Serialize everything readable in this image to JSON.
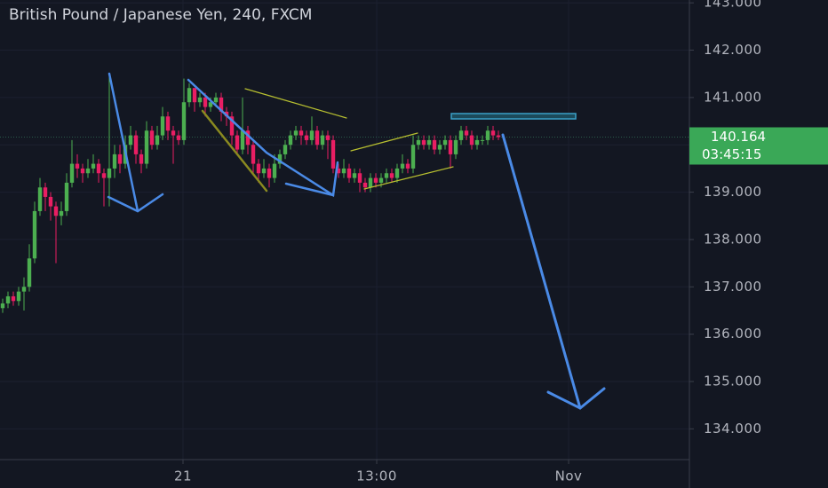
{
  "chart_data": {
    "type": "candlestick",
    "title": "British Pound / Japanese Yen, 240, FXCM",
    "up_color": "#4caf50",
    "down_color": "#e91e63",
    "open": [
      136.55,
      136.65,
      136.8,
      136.7,
      136.9,
      137.0,
      137.6,
      138.6,
      139.1,
      138.9,
      138.7,
      138.5,
      138.6,
      139.2,
      139.6,
      139.5,
      139.4,
      139.5,
      139.6,
      139.4,
      139.3,
      139.5,
      139.8,
      139.6,
      140.0,
      140.2,
      139.8,
      139.6,
      140.3,
      140.0,
      140.2,
      140.6,
      140.3,
      140.2,
      140.1,
      140.9,
      141.2,
      140.9,
      141.0,
      140.8,
      140.9,
      141.0,
      140.7,
      140.6,
      140.2,
      139.9,
      140.3,
      140.0,
      139.6,
      139.4,
      139.5,
      139.3,
      139.6,
      139.8,
      140.0,
      140.2,
      140.3,
      140.2,
      140.1,
      140.3,
      140.0,
      140.2,
      140.1,
      139.5,
      139.4,
      139.5,
      139.3,
      139.4,
      139.2,
      139.1,
      139.3,
      139.2,
      139.3,
      139.4,
      139.3,
      139.5,
      139.6,
      139.5,
      140.0,
      140.1,
      140.0,
      140.1,
      139.9,
      140.0,
      140.1,
      139.8,
      140.1,
      140.3,
      140.2,
      140.0,
      140.1,
      140.1,
      140.3,
      140.2
    ],
    "high": [
      136.75,
      136.9,
      136.9,
      137.0,
      137.2,
      137.9,
      138.8,
      139.3,
      139.2,
      139.0,
      138.8,
      138.8,
      139.4,
      140.1,
      139.8,
      139.6,
      139.7,
      139.8,
      139.7,
      139.5,
      141.5,
      140.0,
      140.0,
      140.2,
      140.4,
      140.3,
      139.9,
      140.5,
      140.4,
      140.4,
      140.8,
      140.7,
      140.4,
      140.3,
      141.4,
      141.3,
      141.2,
      141.1,
      141.1,
      141.0,
      141.1,
      141.1,
      140.8,
      140.7,
      140.3,
      141.0,
      140.4,
      140.1,
      139.7,
      139.7,
      139.6,
      139.8,
      139.9,
      140.1,
      140.3,
      140.4,
      140.4,
      140.3,
      140.6,
      140.4,
      140.3,
      140.3,
      140.2,
      139.6,
      139.7,
      139.6,
      139.5,
      139.5,
      139.3,
      139.4,
      139.4,
      139.4,
      139.5,
      139.5,
      139.6,
      139.8,
      139.7,
      140.2,
      140.2,
      140.2,
      140.2,
      140.2,
      140.1,
      140.2,
      140.2,
      140.2,
      140.4,
      140.4,
      140.3,
      140.2,
      140.2,
      140.4,
      140.4,
      140.3
    ],
    "low": [
      136.45,
      136.55,
      136.6,
      136.6,
      136.5,
      136.9,
      137.5,
      138.5,
      138.6,
      138.4,
      137.5,
      138.3,
      138.5,
      139.1,
      139.3,
      139.2,
      139.3,
      139.4,
      139.2,
      138.7,
      138.7,
      139.3,
      139.4,
      139.5,
      139.9,
      139.6,
      139.4,
      139.5,
      139.9,
      139.9,
      140.1,
      140.1,
      139.6,
      140.0,
      140.0,
      140.8,
      140.7,
      140.8,
      140.6,
      140.7,
      140.8,
      140.5,
      140.4,
      140.0,
      139.8,
      139.8,
      139.8,
      139.4,
      139.2,
      139.3,
      139.1,
      139.2,
      139.5,
      139.7,
      139.9,
      140.1,
      140.0,
      140.0,
      140.0,
      139.9,
      139.9,
      139.7,
      139.4,
      139.3,
      139.3,
      139.2,
      139.2,
      139.0,
      139.0,
      139.0,
      139.1,
      139.1,
      139.2,
      139.2,
      139.2,
      139.4,
      139.4,
      139.4,
      139.9,
      139.9,
      139.9,
      139.8,
      139.8,
      139.9,
      139.5,
      139.7,
      140.0,
      140.1,
      139.9,
      139.9,
      140.0,
      140.0,
      140.1,
      140.1
    ],
    "close": [
      136.65,
      136.8,
      136.7,
      136.9,
      137.0,
      137.6,
      138.6,
      139.1,
      138.9,
      138.7,
      138.5,
      138.6,
      139.2,
      139.6,
      139.5,
      139.4,
      139.5,
      139.6,
      139.4,
      139.3,
      139.5,
      139.8,
      139.6,
      140.0,
      140.2,
      139.8,
      139.6,
      140.3,
      140.0,
      140.2,
      140.6,
      140.3,
      140.2,
      140.1,
      140.9,
      141.2,
      140.9,
      141.0,
      140.8,
      140.9,
      141.0,
      140.7,
      140.6,
      140.2,
      139.9,
      140.3,
      140.0,
      139.6,
      139.4,
      139.5,
      139.3,
      139.6,
      139.8,
      140.0,
      140.2,
      140.3,
      140.2,
      140.1,
      140.3,
      140.0,
      140.2,
      140.1,
      139.5,
      139.4,
      139.5,
      139.3,
      139.4,
      139.2,
      139.1,
      139.3,
      139.2,
      139.3,
      139.4,
      139.3,
      139.5,
      139.6,
      139.5,
      140.0,
      140.1,
      140.0,
      140.1,
      139.9,
      140.0,
      140.1,
      139.8,
      140.1,
      140.3,
      140.2,
      140.0,
      140.1,
      140.1,
      140.3,
      140.2,
      140.164
    ],
    "ylim": [
      133.35,
      143.06
    ],
    "yticks": [
      {
        "value": 134,
        "label": "134.000"
      },
      {
        "value": 135,
        "label": "135.000"
      },
      {
        "value": 136,
        "label": "136.000"
      },
      {
        "value": 137,
        "label": "137.000"
      },
      {
        "value": 138,
        "label": "138.000"
      },
      {
        "value": 139,
        "label": "139.000"
      },
      {
        "value": 140,
        "label": "140.000"
      },
      {
        "value": 141,
        "label": "141.000"
      },
      {
        "value": 142,
        "label": "142.000"
      },
      {
        "value": 143,
        "label": "143.000"
      }
    ],
    "xlim": [
      -0.5,
      128.83
    ],
    "xticks": [
      {
        "value": 33.83,
        "label": "21"
      },
      {
        "value": 70.17,
        "label": "13:00"
      },
      {
        "value": 106.17,
        "label": "Nov"
      }
    ],
    "last_price": {
      "value": 140.164,
      "label": "140.164"
    },
    "countdown": "03:45:15",
    "grid": true
  }
}
